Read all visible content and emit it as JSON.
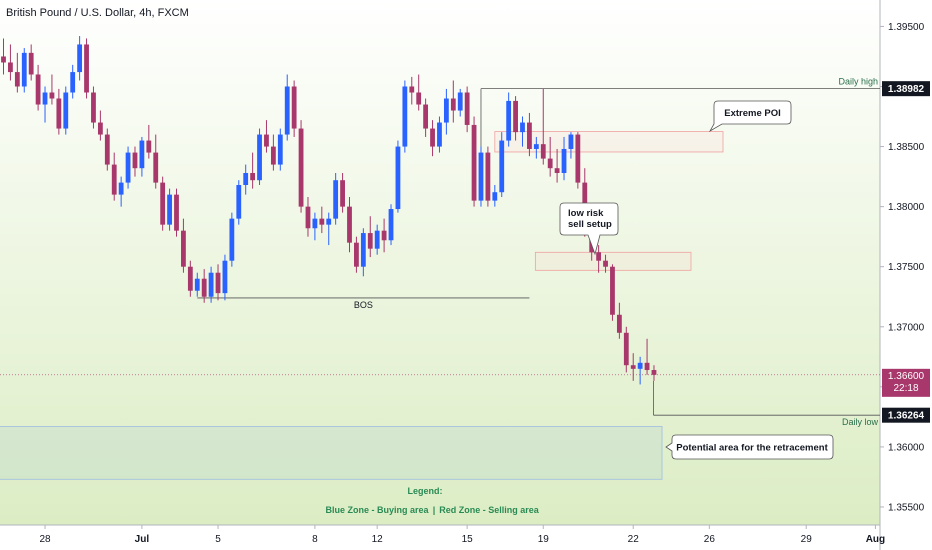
{
  "chart_data": {
    "type": "candlestick",
    "title": "British Pound / U.S. Dollar, 4h, FXCM",
    "ylim": [
      1.3535,
      1.3972
    ],
    "y_ticks": [
      "1.39500",
      "1.39000",
      "1.38500",
      "1.38000",
      "1.37500",
      "1.37000",
      "1.36500",
      "1.36000",
      "1.35500"
    ],
    "y_tick_values": [
      1.395,
      1.39,
      1.385,
      1.38,
      1.375,
      1.37,
      1.365,
      1.36,
      1.355
    ],
    "x_ticks": [
      "28",
      "Jul",
      "5",
      "8",
      "12",
      "15",
      "19",
      "22",
      "26",
      "29",
      "Aug"
    ],
    "x_tick_index": [
      6,
      20,
      31,
      45,
      54,
      67,
      78,
      91,
      102,
      116,
      126
    ],
    "grid": false,
    "colors": {
      "up": "#2962ff",
      "down": "#a8376b",
      "bg_top": "#ffffff",
      "bg_bottom": "#ddeec4"
    },
    "candles": [
      [
        1.3925,
        1.394,
        1.391,
        1.392
      ],
      [
        1.392,
        1.3935,
        1.3905,
        1.3912
      ],
      [
        1.3912,
        1.3928,
        1.3895,
        1.39
      ],
      [
        1.39,
        1.3932,
        1.3895,
        1.3928
      ],
      [
        1.3928,
        1.3935,
        1.3905,
        1.391
      ],
      [
        1.391,
        1.3918,
        1.388,
        1.3885
      ],
      [
        1.3885,
        1.39,
        1.387,
        1.3895
      ],
      [
        1.3895,
        1.391,
        1.3885,
        1.389
      ],
      [
        1.389,
        1.3898,
        1.386,
        1.3865
      ],
      [
        1.3865,
        1.39,
        1.386,
        1.3895
      ],
      [
        1.3895,
        1.3918,
        1.389,
        1.3912
      ],
      [
        1.3912,
        1.3942,
        1.3905,
        1.3935
      ],
      [
        1.3935,
        1.394,
        1.389,
        1.3895
      ],
      [
        1.3895,
        1.39,
        1.3865,
        1.387
      ],
      [
        1.387,
        1.388,
        1.3855,
        1.386
      ],
      [
        1.386,
        1.3865,
        1.383,
        1.3835
      ],
      [
        1.3835,
        1.3845,
        1.3805,
        1.381
      ],
      [
        1.381,
        1.3825,
        1.38,
        1.382
      ],
      [
        1.382,
        1.385,
        1.3815,
        1.3845
      ],
      [
        1.3845,
        1.385,
        1.3825,
        1.3832
      ],
      [
        1.3832,
        1.3858,
        1.3825,
        1.3855
      ],
      [
        1.3855,
        1.3868,
        1.384,
        1.3845
      ],
      [
        1.3845,
        1.386,
        1.3815,
        1.382
      ],
      [
        1.382,
        1.3825,
        1.378,
        1.3785
      ],
      [
        1.3785,
        1.3815,
        1.378,
        1.381
      ],
      [
        1.381,
        1.3815,
        1.3775,
        1.378
      ],
      [
        1.378,
        1.379,
        1.3745,
        1.375
      ],
      [
        1.375,
        1.3755,
        1.3725,
        1.373
      ],
      [
        1.373,
        1.3745,
        1.3725,
        1.374
      ],
      [
        1.374,
        1.3748,
        1.372,
        1.3725
      ],
      [
        1.3725,
        1.375,
        1.372,
        1.3745
      ],
      [
        1.3745,
        1.3752,
        1.3722,
        1.3728
      ],
      [
        1.3728,
        1.376,
        1.3722,
        1.3755
      ],
      [
        1.3755,
        1.3795,
        1.375,
        1.379
      ],
      [
        1.379,
        1.3822,
        1.3785,
        1.3818
      ],
      [
        1.3818,
        1.3835,
        1.381,
        1.3828
      ],
      [
        1.3828,
        1.3845,
        1.3815,
        1.3822
      ],
      [
        1.3822,
        1.3865,
        1.3818,
        1.386
      ],
      [
        1.386,
        1.3872,
        1.3845,
        1.385
      ],
      [
        1.385,
        1.386,
        1.383,
        1.3835
      ],
      [
        1.3835,
        1.3865,
        1.383,
        1.386
      ],
      [
        1.386,
        1.391,
        1.3855,
        1.39
      ],
      [
        1.39,
        1.3905,
        1.3858,
        1.3865
      ],
      [
        1.3865,
        1.3872,
        1.3795,
        1.38
      ],
      [
        1.38,
        1.3808,
        1.3775,
        1.3782
      ],
      [
        1.3782,
        1.3795,
        1.3772,
        1.379
      ],
      [
        1.379,
        1.38,
        1.3778,
        1.3785
      ],
      [
        1.3785,
        1.3795,
        1.3768,
        1.379
      ],
      [
        1.379,
        1.3828,
        1.3785,
        1.3822
      ],
      [
        1.3822,
        1.3828,
        1.3795,
        1.38
      ],
      [
        1.38,
        1.3808,
        1.3762,
        1.377
      ],
      [
        1.377,
        1.3775,
        1.3745,
        1.375
      ],
      [
        1.375,
        1.3782,
        1.3742,
        1.3778
      ],
      [
        1.3778,
        1.3792,
        1.3758,
        1.3765
      ],
      [
        1.3765,
        1.3785,
        1.376,
        1.378
      ],
      [
        1.378,
        1.379,
        1.3762,
        1.3772
      ],
      [
        1.3772,
        1.3802,
        1.3768,
        1.3798
      ],
      [
        1.3798,
        1.3855,
        1.3795,
        1.385
      ],
      [
        1.385,
        1.3905,
        1.3845,
        1.39
      ],
      [
        1.39,
        1.3908,
        1.3885,
        1.3895
      ],
      [
        1.3895,
        1.391,
        1.388,
        1.3885
      ],
      [
        1.3885,
        1.389,
        1.3858,
        1.3865
      ],
      [
        1.3865,
        1.3872,
        1.3842,
        1.385
      ],
      [
        1.385,
        1.3875,
        1.3845,
        1.387
      ],
      [
        1.387,
        1.3898,
        1.386,
        1.389
      ],
      [
        1.389,
        1.3905,
        1.387,
        1.388
      ],
      [
        1.388,
        1.3898,
        1.3875,
        1.3895
      ],
      [
        1.3895,
        1.39,
        1.3862,
        1.3868
      ],
      [
        1.3868,
        1.3875,
        1.38,
        1.3805
      ],
      [
        1.3805,
        1.385,
        1.38,
        1.3845
      ],
      [
        1.3845,
        1.385,
        1.38,
        1.3805
      ],
      [
        1.3805,
        1.3818,
        1.38,
        1.3812
      ],
      [
        1.3812,
        1.3862,
        1.3808,
        1.3855
      ],
      [
        1.3855,
        1.3895,
        1.385,
        1.3888
      ],
      [
        1.3888,
        1.3892,
        1.3855,
        1.3862
      ],
      [
        1.3862,
        1.3875,
        1.385,
        1.387
      ],
      [
        1.387,
        1.3878,
        1.3842,
        1.3848
      ],
      [
        1.3848,
        1.3858,
        1.384,
        1.3852
      ],
      [
        1.3852,
        1.3898,
        1.3835,
        1.384
      ],
      [
        1.384,
        1.3858,
        1.3825,
        1.3832
      ],
      [
        1.3832,
        1.3848,
        1.382,
        1.3828
      ],
      [
        1.3828,
        1.3858,
        1.3822,
        1.3848
      ],
      [
        1.3848,
        1.3862,
        1.384,
        1.386
      ],
      [
        1.386,
        1.3862,
        1.3815,
        1.382
      ],
      [
        1.382,
        1.3832,
        1.3775,
        1.3785
      ],
      [
        1.3785,
        1.379,
        1.3755,
        1.3762
      ],
      [
        1.3762,
        1.3768,
        1.3745,
        1.3755
      ],
      [
        1.3755,
        1.376,
        1.3745,
        1.375
      ],
      [
        1.375,
        1.3752,
        1.3705,
        1.371
      ],
      [
        1.371,
        1.372,
        1.369,
        1.3695
      ],
      [
        1.3695,
        1.37,
        1.3662,
        1.3668
      ],
      [
        1.3668,
        1.3678,
        1.3655,
        1.3665
      ],
      [
        1.3665,
        1.3675,
        1.3652,
        1.367
      ],
      [
        1.367,
        1.369,
        1.366,
        1.3664
      ],
      [
        1.3664,
        1.3668,
        1.3655,
        1.366
      ]
    ],
    "annotations": {
      "daily_high": {
        "label": "Daily high",
        "value": 1.38982,
        "text": "1.38982"
      },
      "daily_low": {
        "label": "Daily low",
        "value": 1.36264,
        "text": "1.36264"
      },
      "current_price": {
        "value": 1.366,
        "text": "1.36600",
        "countdown": "22:18"
      },
      "bos": {
        "label": "BOS",
        "value": 1.3724
      },
      "extreme_poi": {
        "label": "Extreme POI",
        "zone": [
          1.38455,
          1.38625
        ]
      },
      "low_risk": {
        "lines": [
          "low risk",
          "sell setup"
        ],
        "zone": [
          1.3747,
          1.3762
        ]
      },
      "retracement": {
        "label": "Potential area for the retracement",
        "zone": [
          1.3573,
          1.3617
        ]
      }
    },
    "legend": {
      "title": "Legend:",
      "blue": "Blue Zone - Buying area",
      "sep": "|",
      "red": "Red Zone - Selling area"
    }
  }
}
